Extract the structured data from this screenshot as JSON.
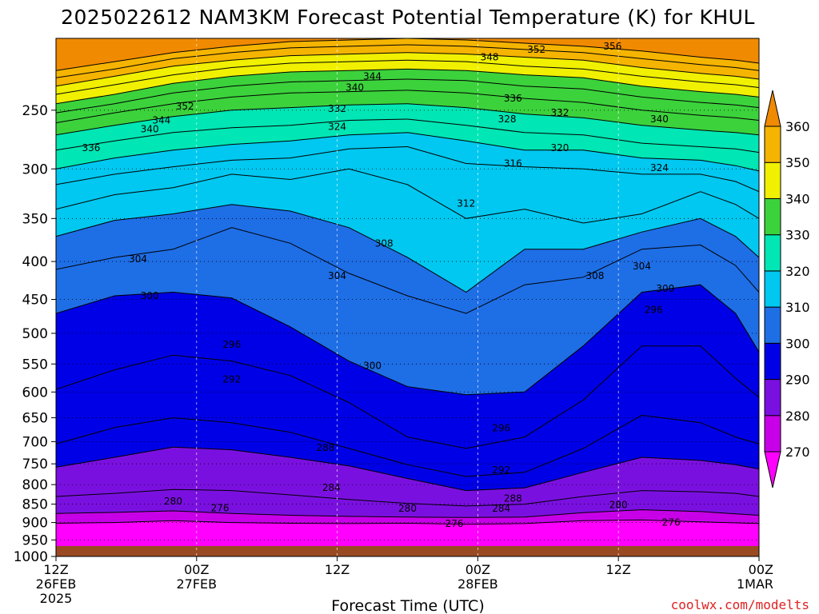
{
  "chart_data": {
    "type": "heatmap",
    "title": "2025022612 NAM3KM Forecast Potential Temperature (K) for KHUL",
    "xlabel": "Forecast Time (UTC)",
    "credit": "coolwx.com/modelts",
    "credit_color": "#e02020",
    "x_ticks": [
      {
        "hours": 0,
        "lines": [
          "12Z",
          "26FEB",
          "2025"
        ]
      },
      {
        "hours": 12,
        "lines": [
          "00Z",
          "27FEB"
        ]
      },
      {
        "hours": 24,
        "lines": [
          "12Z"
        ]
      },
      {
        "hours": 36,
        "lines": [
          "00Z",
          "28FEB"
        ]
      },
      {
        "hours": 48,
        "lines": [
          "12Z"
        ]
      },
      {
        "hours": 60,
        "lines": [
          "00Z",
          "1MAR"
        ]
      }
    ],
    "xlim_hours": [
      0,
      60
    ],
    "y_axis": {
      "scale": "log",
      "ylim": [
        1000,
        200
      ],
      "inverted": true,
      "ticks": [
        250,
        300,
        350,
        400,
        450,
        500,
        550,
        600,
        650,
        700,
        750,
        800,
        850,
        900,
        950,
        1000
      ]
    },
    "grid": true,
    "ground_level_hPa": 968,
    "ground_color": "#9a4a22",
    "colorbar": {
      "location": "right",
      "levels": [
        270,
        280,
        290,
        300,
        310,
        320,
        330,
        340,
        350,
        360
      ],
      "colors": [
        "#ff00ff",
        "#c800e8",
        "#7a10e0",
        "#0000e6",
        "#1e6ee6",
        "#00c8f0",
        "#00e6b4",
        "#3cd23c",
        "#f0f000",
        "#f5b400",
        "#f08a00"
      ]
    },
    "isotherms": [
      {
        "theta": 276,
        "p": [
          902,
          900,
          895,
          900,
          902,
          903,
          902,
          905,
          903,
          895,
          893,
          898,
          901,
          903
        ]
      },
      {
        "theta": 280,
        "p": [
          875,
          872,
          868,
          875,
          880,
          883,
          885,
          886,
          885,
          873,
          865,
          870,
          876,
          880
        ]
      },
      {
        "theta": 284,
        "p": [
          830,
          822,
          812,
          815,
          826,
          838,
          848,
          855,
          850,
          830,
          815,
          818,
          822,
          830
        ]
      },
      {
        "theta": 288,
        "p": [
          758,
          735,
          712,
          718,
          735,
          755,
          785,
          815,
          808,
          770,
          735,
          742,
          752,
          762
        ]
      },
      {
        "theta": 292,
        "p": [
          705,
          670,
          650,
          660,
          680,
          715,
          752,
          780,
          770,
          715,
          645,
          660,
          690,
          705
        ]
      },
      {
        "theta": 296,
        "p": [
          595,
          560,
          535,
          545,
          570,
          620,
          690,
          715,
          690,
          615,
          520,
          520,
          575,
          610
        ]
      },
      {
        "theta": 300,
        "p": [
          470,
          445,
          440,
          448,
          490,
          545,
          590,
          605,
          600,
          520,
          440,
          430,
          470,
          530
        ]
      },
      {
        "theta": 304,
        "p": [
          410,
          395,
          385,
          360,
          378,
          415,
          445,
          470,
          430,
          420,
          385,
          380,
          405,
          440
        ]
      },
      {
        "theta": 308,
        "p": [
          370,
          352,
          345,
          335,
          342,
          360,
          395,
          440,
          385,
          385,
          365,
          350,
          370,
          395
        ]
      },
      {
        "theta": 312,
        "p": [
          340,
          325,
          318,
          305,
          310,
          300,
          315,
          350,
          340,
          355,
          345,
          322,
          335,
          350
        ]
      },
      {
        "theta": 316,
        "p": [
          315,
          305,
          298,
          292,
          290,
          282,
          280,
          295,
          298,
          300,
          305,
          305,
          312,
          322
        ]
      },
      {
        "theta": 320,
        "p": [
          300,
          290,
          283,
          278,
          275,
          270,
          268,
          275,
          283,
          283,
          290,
          292,
          297,
          302
        ]
      },
      {
        "theta": 324,
        "p": [
          283,
          275,
          268,
          264,
          262,
          258,
          257,
          262,
          268,
          270,
          277,
          280,
          282,
          285
        ]
      },
      {
        "theta": 328,
        "p": [
          270,
          262,
          255,
          250,
          248,
          246,
          245,
          248,
          253,
          256,
          262,
          266,
          268,
          270
        ]
      },
      {
        "theta": 332,
        "p": [
          260,
          252,
          245,
          240,
          237,
          236,
          235,
          237,
          241,
          244,
          250,
          254,
          256,
          258
        ]
      },
      {
        "theta": 336,
        "p": [
          252,
          245,
          237,
          232,
          229,
          228,
          227,
          228,
          232,
          234,
          240,
          244,
          246,
          248
        ]
      },
      {
        "theta": 340,
        "p": [
          245,
          238,
          230,
          225,
          222,
          221,
          220,
          221,
          224,
          226,
          232,
          236,
          238,
          240
        ]
      },
      {
        "theta": 344,
        "p": [
          238,
          231,
          224,
          219,
          216,
          215,
          214,
          215,
          218,
          220,
          225,
          229,
          231,
          233
        ]
      },
      {
        "theta": 348,
        "p": [
          232,
          225,
          218,
          214,
          211,
          210,
          209,
          210,
          212,
          214,
          219,
          223,
          225,
          227
        ]
      },
      {
        "theta": 352,
        "p": [
          226,
          220,
          213,
          209,
          206,
          205,
          204,
          205,
          207,
          209,
          213,
          217,
          219,
          221
        ]
      },
      {
        "theta": 356,
        "p": [
          221,
          215,
          209,
          205,
          202,
          201,
          200,
          201,
          203,
          205,
          208,
          212,
          214,
          216
        ]
      }
    ],
    "isotherm_hours": [
      0,
      5,
      10,
      15,
      20,
      25,
      30,
      35,
      40,
      45,
      50,
      55,
      58,
      60
    ],
    "contour_labels": [
      {
        "text": "336",
        "hours": 3,
        "p": 281
      },
      {
        "text": "340",
        "hours": 8,
        "p": 265
      },
      {
        "text": "344",
        "hours": 9,
        "p": 258
      },
      {
        "text": "352",
        "hours": 11,
        "p": 247
      },
      {
        "text": "340",
        "hours": 25.5,
        "p": 233
      },
      {
        "text": "344",
        "hours": 27,
        "p": 225
      },
      {
        "text": "332",
        "hours": 24,
        "p": 249
      },
      {
        "text": "324",
        "hours": 24,
        "p": 263
      },
      {
        "text": "348",
        "hours": 37,
        "p": 212
      },
      {
        "text": "352",
        "hours": 41,
        "p": 207
      },
      {
        "text": "356",
        "hours": 47.5,
        "p": 205
      },
      {
        "text": "336",
        "hours": 39,
        "p": 241
      },
      {
        "text": "332",
        "hours": 43,
        "p": 252
      },
      {
        "text": "328",
        "hours": 38.5,
        "p": 257
      },
      {
        "text": "340",
        "hours": 51.5,
        "p": 257
      },
      {
        "text": "320",
        "hours": 43,
        "p": 281
      },
      {
        "text": "316",
        "hours": 39,
        "p": 295
      },
      {
        "text": "324",
        "hours": 51.5,
        "p": 299
      },
      {
        "text": "312",
        "hours": 35,
        "p": 334
      },
      {
        "text": "308",
        "hours": 28,
        "p": 378
      },
      {
        "text": "304",
        "hours": 7,
        "p": 397
      },
      {
        "text": "304",
        "hours": 24,
        "p": 418
      },
      {
        "text": "308",
        "hours": 46,
        "p": 418
      },
      {
        "text": "304",
        "hours": 50,
        "p": 406
      },
      {
        "text": "300",
        "hours": 8,
        "p": 445
      },
      {
        "text": "300",
        "hours": 52,
        "p": 435
      },
      {
        "text": "296",
        "hours": 51,
        "p": 465
      },
      {
        "text": "296",
        "hours": 15,
        "p": 518
      },
      {
        "text": "292",
        "hours": 15,
        "p": 577
      },
      {
        "text": "300",
        "hours": 27,
        "p": 553
      },
      {
        "text": "296",
        "hours": 38,
        "p": 671
      },
      {
        "text": "288",
        "hours": 23,
        "p": 713
      },
      {
        "text": "292",
        "hours": 38,
        "p": 765
      },
      {
        "text": "284",
        "hours": 23.5,
        "p": 808
      },
      {
        "text": "288",
        "hours": 39,
        "p": 835
      },
      {
        "text": "284",
        "hours": 38,
        "p": 862
      },
      {
        "text": "280",
        "hours": 10,
        "p": 842
      },
      {
        "text": "276",
        "hours": 14,
        "p": 860
      },
      {
        "text": "280",
        "hours": 30,
        "p": 862
      },
      {
        "text": "276",
        "hours": 34,
        "p": 903
      },
      {
        "text": "280",
        "hours": 48,
        "p": 852
      },
      {
        "text": "276",
        "hours": 52.5,
        "p": 900
      }
    ]
  }
}
